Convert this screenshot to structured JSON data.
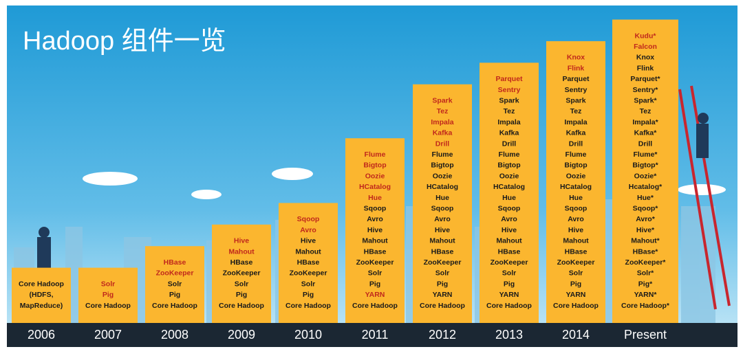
{
  "title": "Hadoop 组件一览",
  "columns": [
    {
      "year": "2006",
      "items": [
        {
          "text": "Core Hadoop"
        },
        {
          "text": "(HDFS,"
        },
        {
          "text": "MapReduce)"
        }
      ]
    },
    {
      "year": "2007",
      "items": [
        {
          "text": "Solr",
          "new": true
        },
        {
          "text": "Pig",
          "new": true
        },
        {
          "text": "Core Hadoop"
        }
      ]
    },
    {
      "year": "2008",
      "items": [
        {
          "text": "HBase",
          "new": true
        },
        {
          "text": "ZooKeeper",
          "new": true
        },
        {
          "text": "Solr"
        },
        {
          "text": "Pig"
        },
        {
          "text": "Core Hadoop"
        }
      ]
    },
    {
      "year": "2009",
      "items": [
        {
          "text": "Hive",
          "new": true
        },
        {
          "text": "Mahout",
          "new": true
        },
        {
          "text": "HBase"
        },
        {
          "text": "ZooKeeper"
        },
        {
          "text": "Solr"
        },
        {
          "text": "Pig"
        },
        {
          "text": "Core Hadoop"
        }
      ]
    },
    {
      "year": "2010",
      "items": [
        {
          "text": "Sqoop",
          "new": true
        },
        {
          "text": "Avro",
          "new": true
        },
        {
          "text": "Hive"
        },
        {
          "text": "Mahout"
        },
        {
          "text": "HBase"
        },
        {
          "text": "ZooKeeper"
        },
        {
          "text": "Solr"
        },
        {
          "text": "Pig"
        },
        {
          "text": "Core Hadoop"
        }
      ]
    },
    {
      "year": "2011",
      "items": [
        {
          "text": "Flume",
          "new": true
        },
        {
          "text": "Bigtop",
          "new": true
        },
        {
          "text": "Oozie",
          "new": true
        },
        {
          "text": "HCatalog",
          "new": true
        },
        {
          "text": "Hue",
          "new": true
        },
        {
          "text": "Sqoop"
        },
        {
          "text": "Avro"
        },
        {
          "text": "Hive"
        },
        {
          "text": "Mahout"
        },
        {
          "text": "HBase"
        },
        {
          "text": "ZooKeeper"
        },
        {
          "text": "Solr"
        },
        {
          "text": "Pig"
        },
        {
          "text": "YARN",
          "new": true
        },
        {
          "text": "Core Hadoop"
        }
      ]
    },
    {
      "year": "2012",
      "items": [
        {
          "text": "Spark",
          "new": true
        },
        {
          "text": "Tez",
          "new": true
        },
        {
          "text": "Impala",
          "new": true
        },
        {
          "text": "Kafka",
          "new": true
        },
        {
          "text": "Drill",
          "new": true
        },
        {
          "text": "Flume"
        },
        {
          "text": "Bigtop"
        },
        {
          "text": "Oozie"
        },
        {
          "text": "HCatalog"
        },
        {
          "text": "Hue"
        },
        {
          "text": "Sqoop"
        },
        {
          "text": "Avro"
        },
        {
          "text": "Hive"
        },
        {
          "text": "Mahout"
        },
        {
          "text": "HBase"
        },
        {
          "text": "ZooKeeper"
        },
        {
          "text": "Solr"
        },
        {
          "text": "Pig"
        },
        {
          "text": "YARN"
        },
        {
          "text": "Core Hadoop"
        }
      ]
    },
    {
      "year": "2013",
      "items": [
        {
          "text": "Parquet",
          "new": true
        },
        {
          "text": "Sentry",
          "new": true
        },
        {
          "text": "Spark"
        },
        {
          "text": "Tez"
        },
        {
          "text": "Impala"
        },
        {
          "text": "Kafka"
        },
        {
          "text": "Drill"
        },
        {
          "text": "Flume"
        },
        {
          "text": "Bigtop"
        },
        {
          "text": "Oozie"
        },
        {
          "text": "HCatalog"
        },
        {
          "text": "Hue"
        },
        {
          "text": "Sqoop"
        },
        {
          "text": "Avro"
        },
        {
          "text": "Hive"
        },
        {
          "text": "Mahout"
        },
        {
          "text": "HBase"
        },
        {
          "text": "ZooKeeper"
        },
        {
          "text": "Solr"
        },
        {
          "text": "Pig"
        },
        {
          "text": "YARN"
        },
        {
          "text": "Core Hadoop"
        }
      ]
    },
    {
      "year": "2014",
      "items": [
        {
          "text": "Knox",
          "new": true
        },
        {
          "text": "Flink",
          "new": true
        },
        {
          "text": "Parquet"
        },
        {
          "text": "Sentry"
        },
        {
          "text": "Spark"
        },
        {
          "text": "Tez"
        },
        {
          "text": "Impala"
        },
        {
          "text": "Kafka"
        },
        {
          "text": "Drill"
        },
        {
          "text": "Flume"
        },
        {
          "text": "Bigtop"
        },
        {
          "text": "Oozie"
        },
        {
          "text": "HCatalog"
        },
        {
          "text": "Hue"
        },
        {
          "text": "Sqoop"
        },
        {
          "text": "Avro"
        },
        {
          "text": "Hive"
        },
        {
          "text": "Mahout"
        },
        {
          "text": "HBase"
        },
        {
          "text": "ZooKeeper"
        },
        {
          "text": "Solr"
        },
        {
          "text": "Pig"
        },
        {
          "text": "YARN"
        },
        {
          "text": "Core Hadoop"
        }
      ]
    },
    {
      "year": "Present",
      "items": [
        {
          "text": "Kudu*",
          "new": true
        },
        {
          "text": "Falcon",
          "new": true
        },
        {
          "text": "Knox"
        },
        {
          "text": "Flink"
        },
        {
          "text": "Parquet*"
        },
        {
          "text": "Sentry*"
        },
        {
          "text": "Spark*"
        },
        {
          "text": "Tez"
        },
        {
          "text": "Impala*"
        },
        {
          "text": "Kafka*"
        },
        {
          "text": "Drill"
        },
        {
          "text": "Flume*"
        },
        {
          "text": "Bigtop*"
        },
        {
          "text": "Oozie*"
        },
        {
          "text": "Hcatalog*"
        },
        {
          "text": "Hue*"
        },
        {
          "text": "Sqoop*"
        },
        {
          "text": "Avro*"
        },
        {
          "text": "Hive*"
        },
        {
          "text": "Mahout*"
        },
        {
          "text": "HBase*"
        },
        {
          "text": "ZooKeeper*"
        },
        {
          "text": "Solr*"
        },
        {
          "text": "Pig*"
        },
        {
          "text": "YARN*"
        },
        {
          "text": "Core Hadoop*"
        }
      ]
    }
  ]
}
